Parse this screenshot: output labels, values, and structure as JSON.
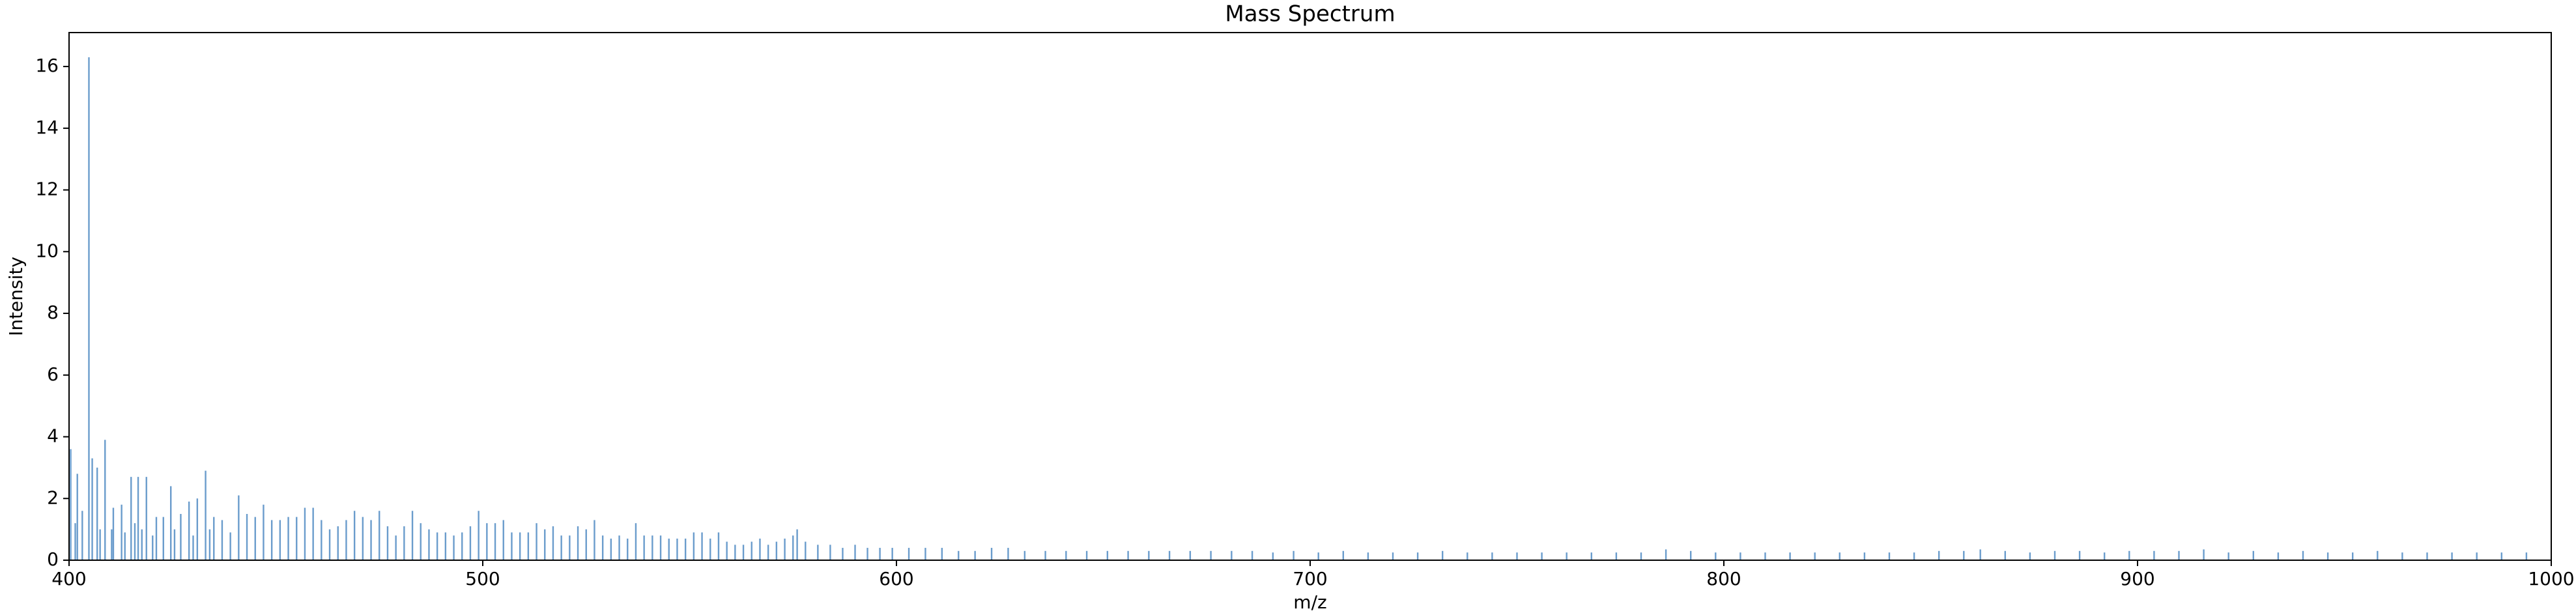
{
  "chart_data": {
    "type": "stem",
    "title": "Mass Spectrum",
    "x_label": "m/z",
    "y_label": "Intensity",
    "color": "#6a9ccc",
    "xlim": [
      400,
      1000
    ],
    "xticks": [
      400,
      500,
      600,
      700,
      800,
      900,
      1000
    ],
    "ylim": [
      0,
      17.1
    ],
    "yticks": [
      0,
      2,
      4,
      6,
      8,
      10,
      12,
      14,
      16
    ],
    "x": [
      400.4,
      401.5,
      402.0,
      403.2,
      404.8,
      405.6,
      406.8,
      407.5,
      408.7,
      410.3,
      410.7,
      412.7,
      413.5,
      415.0,
      415.9,
      416.7,
      417.6,
      418.7,
      420.2,
      421.1,
      422.8,
      424.6,
      425.5,
      427.0,
      429.0,
      430.0,
      431.0,
      433.0,
      434.0,
      435.0,
      437.0,
      439.0,
      441.0,
      443.0,
      445.0,
      447.0,
      449.0,
      451.0,
      453.0,
      455.0,
      457.0,
      459.0,
      461.0,
      463.0,
      465.0,
      467.0,
      469.0,
      471.0,
      473.0,
      475.0,
      477.0,
      479.0,
      481.0,
      483.0,
      485.0,
      487.0,
      489.0,
      491.0,
      493.0,
      495.0,
      497.0,
      499.0,
      501.0,
      503.0,
      505.0,
      507.0,
      509.0,
      511.0,
      513.0,
      515.0,
      517.0,
      519.0,
      521.0,
      523.0,
      525.0,
      527.0,
      529.0,
      531.0,
      533.0,
      535.0,
      537.0,
      539.0,
      541.0,
      543.0,
      545.0,
      547.0,
      549.0,
      551.0,
      553.0,
      555.0,
      557.0,
      559.0,
      561.0,
      563.0,
      565.0,
      567.0,
      569.0,
      571.0,
      573.0,
      575.0,
      576.0,
      578.0,
      581,
      584,
      587,
      590,
      593,
      596,
      599,
      603,
      607,
      611,
      615,
      619,
      623,
      627,
      631,
      636,
      641,
      646,
      651,
      656,
      661,
      666,
      671,
      676,
      681,
      686,
      691,
      696,
      702,
      708,
      714,
      720,
      726,
      732,
      738,
      744,
      750,
      756,
      762,
      768,
      774,
      780,
      786,
      792,
      798,
      804,
      810,
      816,
      822,
      828,
      834,
      840,
      846,
      852,
      858,
      862,
      868,
      874,
      880,
      886,
      892,
      898,
      904,
      910,
      916,
      922,
      928,
      934,
      940,
      946,
      952,
      958,
      964,
      970,
      976,
      982,
      988,
      994
    ],
    "values": [
      3.6,
      1.2,
      2.8,
      1.6,
      16.3,
      3.3,
      3.0,
      1.0,
      3.9,
      1.0,
      1.7,
      1.8,
      0.9,
      2.7,
      1.2,
      2.7,
      1.0,
      2.7,
      0.8,
      1.4,
      1.4,
      2.4,
      1.0,
      1.5,
      1.9,
      0.8,
      2.0,
      2.9,
      1.0,
      1.4,
      1.3,
      0.9,
      2.1,
      1.5,
      1.4,
      1.8,
      1.3,
      1.3,
      1.4,
      1.4,
      1.7,
      1.7,
      1.3,
      1.0,
      1.1,
      1.3,
      1.6,
      1.4,
      1.3,
      1.6,
      1.1,
      0.8,
      1.1,
      1.6,
      1.2,
      1.0,
      0.9,
      0.9,
      0.8,
      0.9,
      1.1,
      1.6,
      1.2,
      1.2,
      1.3,
      0.9,
      0.9,
      0.9,
      1.2,
      1.0,
      1.1,
      0.8,
      0.8,
      1.1,
      1.0,
      1.3,
      0.8,
      0.7,
      0.8,
      0.7,
      1.2,
      0.8,
      0.8,
      0.8,
      0.7,
      0.7,
      0.7,
      0.9,
      0.9,
      0.7,
      0.9,
      0.6,
      0.5,
      0.5,
      0.6,
      0.7,
      0.5,
      0.6,
      0.7,
      0.8,
      1.0,
      0.6,
      0.5,
      0.5,
      0.4,
      0.5,
      0.4,
      0.4,
      0.4,
      0.4,
      0.4,
      0.4,
      0.3,
      0.3,
      0.4,
      0.4,
      0.3,
      0.3,
      0.3,
      0.3,
      0.3,
      0.3,
      0.3,
      0.3,
      0.3,
      0.3,
      0.3,
      0.3,
      0.25,
      0.3,
      0.25,
      0.3,
      0.25,
      0.25,
      0.25,
      0.3,
      0.25,
      0.25,
      0.25,
      0.25,
      0.25,
      0.25,
      0.25,
      0.25,
      0.35,
      0.3,
      0.25,
      0.25,
      0.25,
      0.25,
      0.25,
      0.25,
      0.25,
      0.25,
      0.25,
      0.3,
      0.3,
      0.35,
      0.3,
      0.25,
      0.3,
      0.3,
      0.25,
      0.3,
      0.3,
      0.3,
      0.35,
      0.25,
      0.3,
      0.25,
      0.3,
      0.25,
      0.25,
      0.3,
      0.25,
      0.25,
      0.25,
      0.25,
      0.25,
      0.25
    ]
  }
}
